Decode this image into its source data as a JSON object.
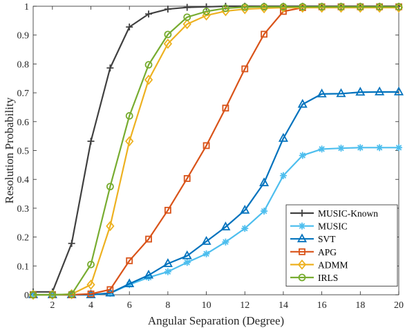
{
  "chart_data": {
    "type": "line",
    "title": "",
    "xlabel": "Angular Separation (Degree)",
    "ylabel": "Resolution Probability",
    "xlim": [
      1,
      20
    ],
    "ylim": [
      0,
      1
    ],
    "xticks": [
      2,
      4,
      6,
      8,
      10,
      12,
      14,
      16,
      18,
      20
    ],
    "yticks": [
      0,
      0.1,
      0.2,
      0.3,
      0.4,
      0.5,
      0.6,
      0.7,
      0.8,
      0.9,
      1
    ],
    "ytick_labels": [
      "0",
      "0.1",
      "0.2",
      "0.3",
      "0.4",
      "0.5",
      "0.6",
      "0.7",
      "0.8",
      "0.9",
      "1"
    ],
    "grid": false,
    "legend_position": "bottom-right",
    "x": [
      1,
      2,
      3,
      4,
      5,
      6,
      7,
      8,
      9,
      10,
      11,
      12,
      13,
      14,
      15,
      16,
      17,
      18,
      19,
      20
    ],
    "series": [
      {
        "name": "MUSIC-Known",
        "color": "#404040",
        "marker": "plus",
        "values": [
          0.01,
          0.01,
          0.178,
          0.532,
          0.786,
          0.928,
          0.973,
          0.99,
          0.996,
          0.998,
          1,
          1,
          1,
          1,
          1,
          1,
          1,
          1,
          1,
          1
        ]
      },
      {
        "name": "MUSIC",
        "color": "#4dbeee",
        "marker": "asterisk",
        "values": [
          0,
          0,
          0,
          0,
          0.005,
          0.035,
          0.06,
          0.08,
          0.112,
          0.142,
          0.183,
          0.23,
          0.29,
          0.413,
          0.483,
          0.505,
          0.508,
          0.51,
          0.51,
          0.51
        ]
      },
      {
        "name": "SVT",
        "color": "#0072bd",
        "marker": "triangle",
        "values": [
          0,
          0,
          0,
          0,
          0.006,
          0.038,
          0.068,
          0.108,
          0.135,
          0.185,
          0.235,
          0.293,
          0.388,
          0.542,
          0.66,
          0.696,
          0.697,
          0.702,
          0.703,
          0.703
        ]
      },
      {
        "name": "APG",
        "color": "#d95319",
        "marker": "square",
        "values": [
          0,
          0,
          0,
          0.003,
          0.018,
          0.118,
          0.193,
          0.293,
          0.403,
          0.517,
          0.647,
          0.783,
          0.903,
          0.982,
          0.995,
          0.998,
          0.998,
          0.998,
          0.998,
          0.998
        ]
      },
      {
        "name": "ADMM",
        "color": "#edb120",
        "marker": "diamond",
        "values": [
          0,
          0,
          0.002,
          0.035,
          0.238,
          0.532,
          0.745,
          0.87,
          0.938,
          0.968,
          0.983,
          0.99,
          0.993,
          0.995,
          0.995,
          0.995,
          0.995,
          0.995,
          0.995,
          0.995
        ]
      },
      {
        "name": "IRLS",
        "color": "#77ac30",
        "marker": "circle",
        "values": [
          0,
          0,
          0.002,
          0.105,
          0.375,
          0.62,
          0.797,
          0.902,
          0.962,
          0.982,
          0.993,
          0.997,
          0.998,
          0.998,
          0.998,
          0.998,
          0.998,
          0.998,
          0.998,
          0.998
        ]
      }
    ]
  }
}
